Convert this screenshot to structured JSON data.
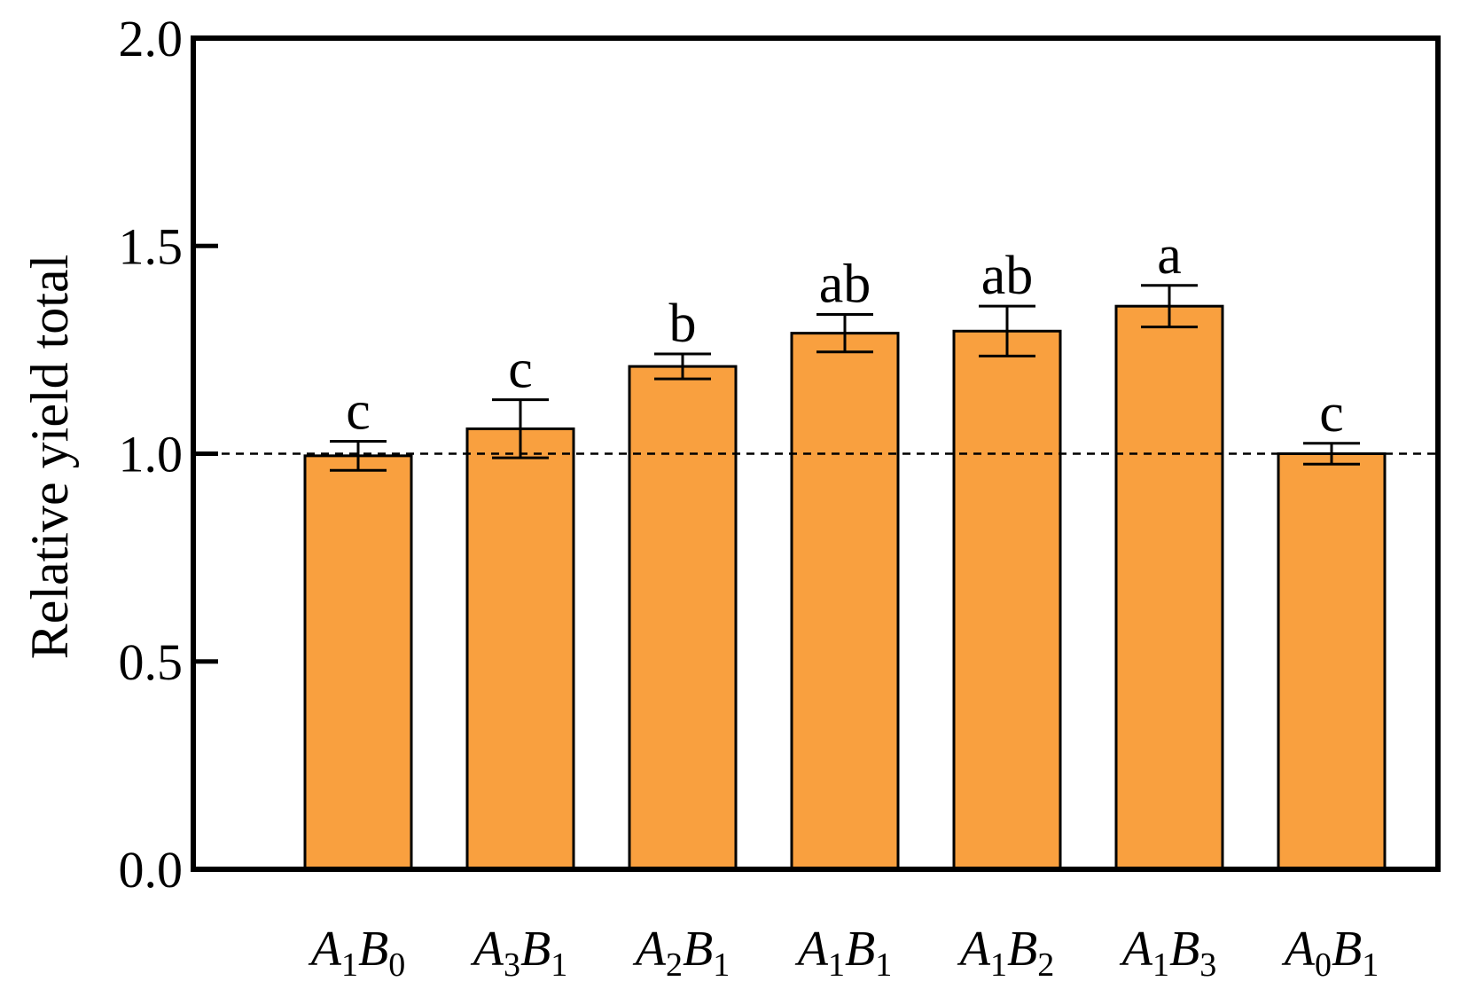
{
  "chart_data": {
    "type": "bar",
    "ylabel": "Relative yield total",
    "xlabel": "",
    "ylim": [
      0,
      2.0
    ],
    "yticks": [
      {
        "value": 0.0,
        "label": "0.0"
      },
      {
        "value": 0.5,
        "label": "0.5"
      },
      {
        "value": 1.0,
        "label": "1.0"
      },
      {
        "value": 1.5,
        "label": "1.5"
      },
      {
        "value": 2.0,
        "label": "2.0"
      }
    ],
    "reference_line": {
      "value": 1.0,
      "style": "dashed"
    },
    "categories": [
      {
        "a": "A",
        "a_sub": "1",
        "b": "B",
        "b_sub": "0"
      },
      {
        "a": "A",
        "a_sub": "3",
        "b": "B",
        "b_sub": "1"
      },
      {
        "a": "A",
        "a_sub": "2",
        "b": "B",
        "b_sub": "1"
      },
      {
        "a": "A",
        "a_sub": "1",
        "b": "B",
        "b_sub": "1"
      },
      {
        "a": "A",
        "a_sub": "1",
        "b": "B",
        "b_sub": "2"
      },
      {
        "a": "A",
        "a_sub": "1",
        "b": "B",
        "b_sub": "3"
      },
      {
        "a": "A",
        "a_sub": "0",
        "b": "B",
        "b_sub": "1"
      }
    ],
    "values": [
      0.995,
      1.06,
      1.21,
      1.29,
      1.295,
      1.355,
      1.0
    ],
    "errors": [
      0.035,
      0.07,
      0.03,
      0.045,
      0.06,
      0.05,
      0.025
    ],
    "significance_letters": [
      "c",
      "c",
      "b",
      "ab",
      "ab",
      "a",
      "c"
    ],
    "bar_color": "#F9A03F",
    "bar_edge_color": "#000000",
    "grid": false,
    "legend": "none"
  }
}
